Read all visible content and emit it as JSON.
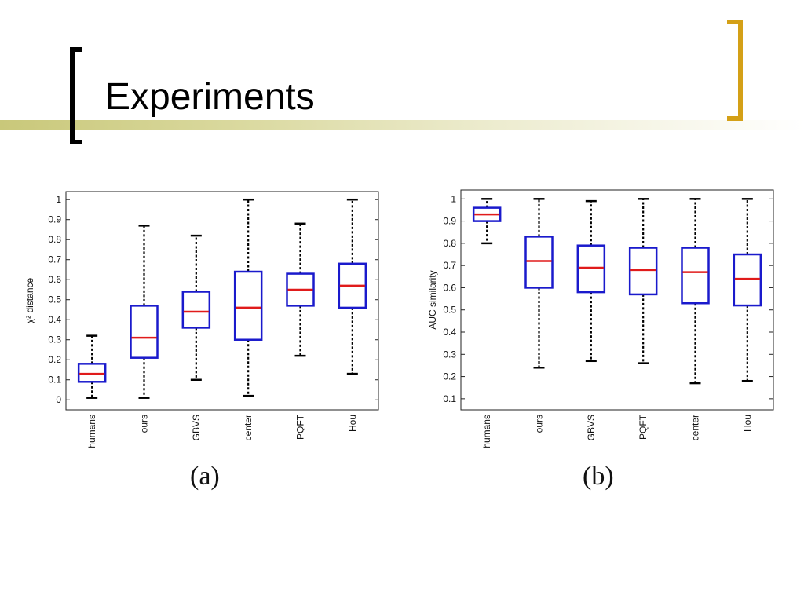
{
  "slide": {
    "title": "Experiments",
    "colors": {
      "band": "#c9c87a",
      "left_bracket": "#000000",
      "right_bracket": "#d4a017",
      "box": "#1a1acc",
      "median": "#e01b1b",
      "whisker": "#000000"
    }
  },
  "chart_data": [
    {
      "type": "boxplot",
      "panel_label": "(a)",
      "ylabel": "χ² distance",
      "ylim": [
        -0.05,
        1.04
      ],
      "yticks": [
        0,
        0.1,
        0.2,
        0.3,
        0.4,
        0.5,
        0.6,
        0.7,
        0.8,
        0.9,
        1
      ],
      "ytick_labels": [
        "0",
        "0.1",
        "0.2",
        "0.3",
        "0.4",
        "0.5",
        "0.6",
        "0.7",
        "0.8",
        "0.9",
        "1"
      ],
      "categories": [
        "humans",
        "ours",
        "GBVS",
        "center",
        "PQFT",
        "Hou"
      ],
      "boxes": [
        {
          "min": 0.01,
          "q1": 0.09,
          "median": 0.13,
          "q3": 0.18,
          "max": 0.32
        },
        {
          "min": 0.01,
          "q1": 0.21,
          "median": 0.31,
          "q3": 0.47,
          "max": 0.87
        },
        {
          "min": 0.1,
          "q1": 0.36,
          "median": 0.44,
          "q3": 0.54,
          "max": 0.82
        },
        {
          "min": 0.02,
          "q1": 0.3,
          "median": 0.46,
          "q3": 0.64,
          "max": 1.0
        },
        {
          "min": 0.22,
          "q1": 0.47,
          "median": 0.55,
          "q3": 0.63,
          "max": 0.88
        },
        {
          "min": 0.13,
          "q1": 0.46,
          "median": 0.57,
          "q3": 0.68,
          "max": 1.0
        }
      ]
    },
    {
      "type": "boxplot",
      "panel_label": "(b)",
      "ylabel": "AUC similarity",
      "ylim": [
        0.05,
        1.04
      ],
      "yticks": [
        0.1,
        0.2,
        0.3,
        0.4,
        0.5,
        0.6,
        0.7,
        0.8,
        0.9,
        1
      ],
      "ytick_labels": [
        "0.1",
        "0.2",
        "0.3",
        "0.4",
        "0.5",
        "0.6",
        "0.7",
        "0.8",
        "0.9",
        "1"
      ],
      "categories": [
        "humans",
        "ours",
        "GBVS",
        "PQFT",
        "center",
        "Hou"
      ],
      "boxes": [
        {
          "min": 0.8,
          "q1": 0.9,
          "median": 0.93,
          "q3": 0.96,
          "max": 1.0
        },
        {
          "min": 0.24,
          "q1": 0.6,
          "median": 0.72,
          "q3": 0.83,
          "max": 1.0
        },
        {
          "min": 0.27,
          "q1": 0.58,
          "median": 0.69,
          "q3": 0.79,
          "max": 0.99
        },
        {
          "min": 0.26,
          "q1": 0.57,
          "median": 0.68,
          "q3": 0.78,
          "max": 1.0
        },
        {
          "min": 0.17,
          "q1": 0.53,
          "median": 0.67,
          "q3": 0.78,
          "max": 1.0
        },
        {
          "min": 0.18,
          "q1": 0.52,
          "median": 0.64,
          "q3": 0.75,
          "max": 1.0
        }
      ]
    }
  ]
}
